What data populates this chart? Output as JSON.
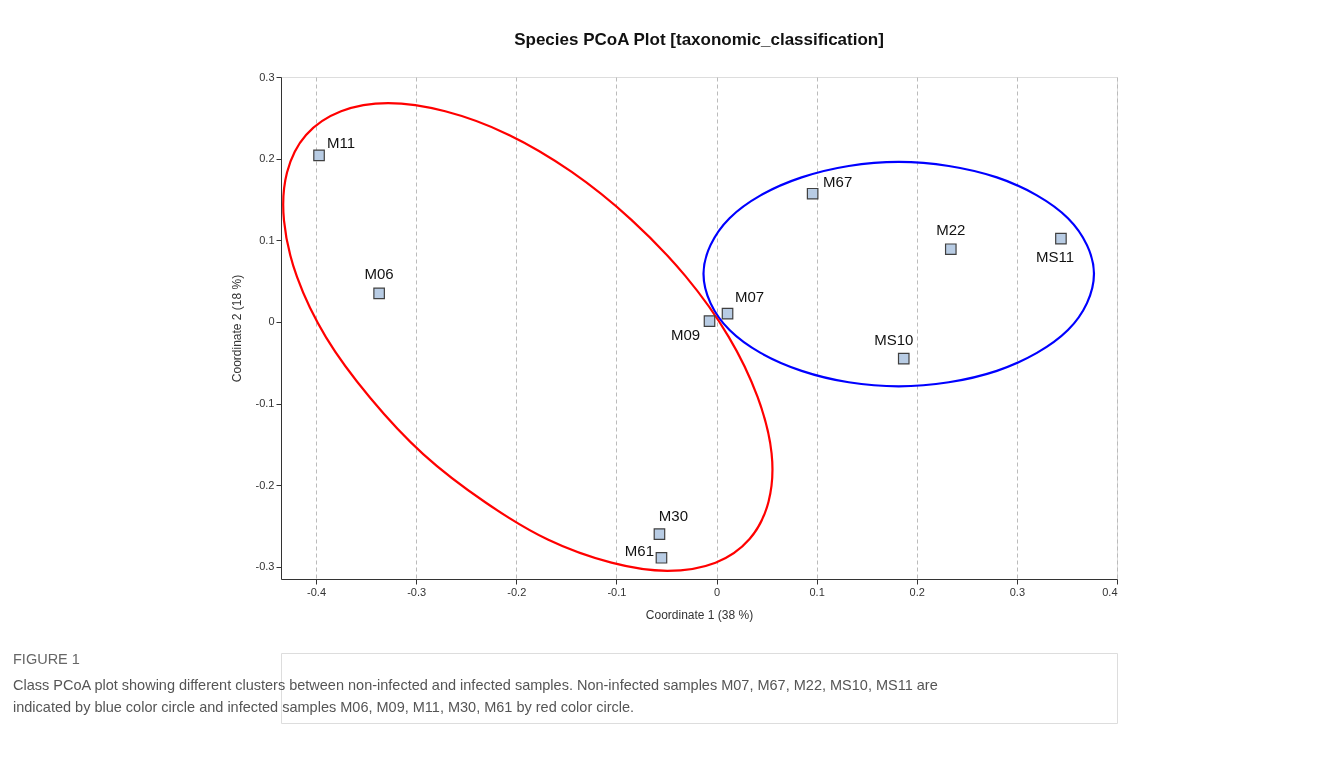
{
  "chart_data": {
    "type": "scatter",
    "title": "Species PCoA Plot [taxonomic_classification]",
    "xlabel": "Coordinate 1 (38 %)",
    "ylabel": "Coordinate 2 (18 %)",
    "xlim": [
      -0.435,
      0.4
    ],
    "ylim": [
      -0.315,
      0.3
    ],
    "xticks": [
      -0.4,
      -0.3,
      -0.2,
      -0.1,
      0,
      0.1,
      0.2,
      0.3,
      0.4
    ],
    "yticks": [
      -0.3,
      -0.2,
      -0.1,
      0,
      0.1,
      0.2,
      0.3
    ],
    "grid": "x",
    "marker": "square",
    "series": [
      {
        "color": "#b8cce4",
        "x": [
          -0.397,
          -0.337,
          -0.007,
          0.011,
          0.096,
          0.234,
          0.344,
          0.187,
          -0.057,
          -0.055
        ],
        "values": [
          0.204,
          0.035,
          0.001,
          0.01,
          0.157,
          0.089,
          0.102,
          -0.045,
          -0.26,
          -0.289
        ],
        "value_labels": [
          "M11",
          "M06",
          "M09",
          "M07",
          "M67",
          "M22",
          "MS11",
          "MS10",
          "M30",
          "M61"
        ]
      }
    ],
    "annotations": [
      "FIGURE 1",
      "Class PCoA plot showing different clusters between non-infected and infected samples. Non-infected samples M07, M67, M22, MS10, MS11 are indicated by blue color circle and infected samples M06, M09, M11, M30, M61 by red color circle."
    ]
  }
}
